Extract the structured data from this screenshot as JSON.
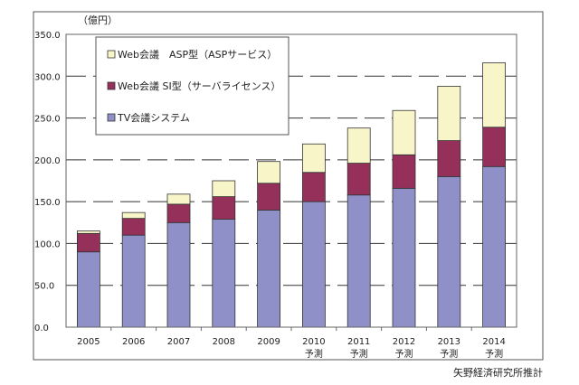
{
  "chart_data": {
    "type": "bar",
    "stacked": true,
    "unit_label": "（億円）",
    "categories": [
      "2005",
      "2006",
      "2007",
      "2008",
      "2009",
      "2010",
      "2011",
      "2012",
      "2013",
      "2014"
    ],
    "category_sublabels": [
      "",
      "",
      "",
      "",
      "",
      "予測",
      "予測",
      "予測",
      "予測",
      "予測"
    ],
    "series": [
      {
        "name": "TV会議システム",
        "color": "#9090c8",
        "values": [
          90,
          110,
          125,
          129,
          140,
          150,
          158,
          166,
          180,
          192
        ]
      },
      {
        "name": "Web会議 SI型（サーバライセンス）",
        "color": "#95305a",
        "values": [
          22,
          20,
          22,
          27,
          32,
          35,
          38,
          40,
          43,
          47
        ]
      },
      {
        "name": "Web会議　ASP型（ASPサービス）",
        "color": "#f8f6c8",
        "values": [
          3,
          7,
          12,
          19,
          26,
          34,
          42,
          53,
          65,
          77
        ]
      }
    ],
    "legend_order": [
      2,
      1,
      0
    ],
    "legend_placement": "top-left",
    "ylim": [
      0,
      350
    ],
    "yticks": [
      "0.0",
      "50.0",
      "100.0",
      "150.0",
      "200.0",
      "250.0",
      "300.0",
      "350.0"
    ],
    "grid": "dashed horizontal",
    "source": "矢野経済研究所推計"
  }
}
